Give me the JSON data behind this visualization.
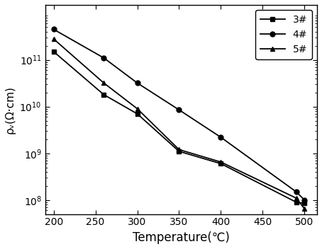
{
  "series": [
    {
      "label": "3#",
      "marker": "s",
      "x": [
        200,
        260,
        300,
        350,
        400,
        490,
        500
      ],
      "y": [
        150000000000.0,
        18000000000.0,
        7000000000.0,
        1100000000.0,
        600000000.0,
        90000000.0,
        85000000.0
      ]
    },
    {
      "label": "4#",
      "marker": "o",
      "x": [
        200,
        260,
        300,
        350,
        400,
        490,
        500
      ],
      "y": [
        450000000000.0,
        110000000000.0,
        32000000000.0,
        8500000000.0,
        2200000000.0,
        150000000.0,
        100000000.0
      ]
    },
    {
      "label": "5#",
      "marker": "^",
      "x": [
        200,
        260,
        300,
        350,
        400,
        490,
        500
      ],
      "y": [
        280000000000.0,
        32000000000.0,
        9000000000.0,
        1200000000.0,
        650000000.0,
        110000000.0,
        65000000.0
      ]
    }
  ],
  "xlabel": "Temperature(℃)",
  "ylabel": "ρᵥ(Ω·cm)",
  "xlim": [
    190,
    515
  ],
  "ylim": [
    50000000.0,
    1500000000000.0
  ],
  "xticks": [
    200,
    250,
    300,
    350,
    400,
    450,
    500
  ],
  "yticks": [
    100000000.0,
    1000000000.0,
    10000000000.0,
    100000000000.0
  ],
  "line_color": "black",
  "marker_size": 5,
  "linewidth": 1.3,
  "legend_loc": "upper right",
  "xlabel_fontsize": 12,
  "ylabel_fontsize": 11,
  "tick_fontsize": 10,
  "legend_fontsize": 10
}
